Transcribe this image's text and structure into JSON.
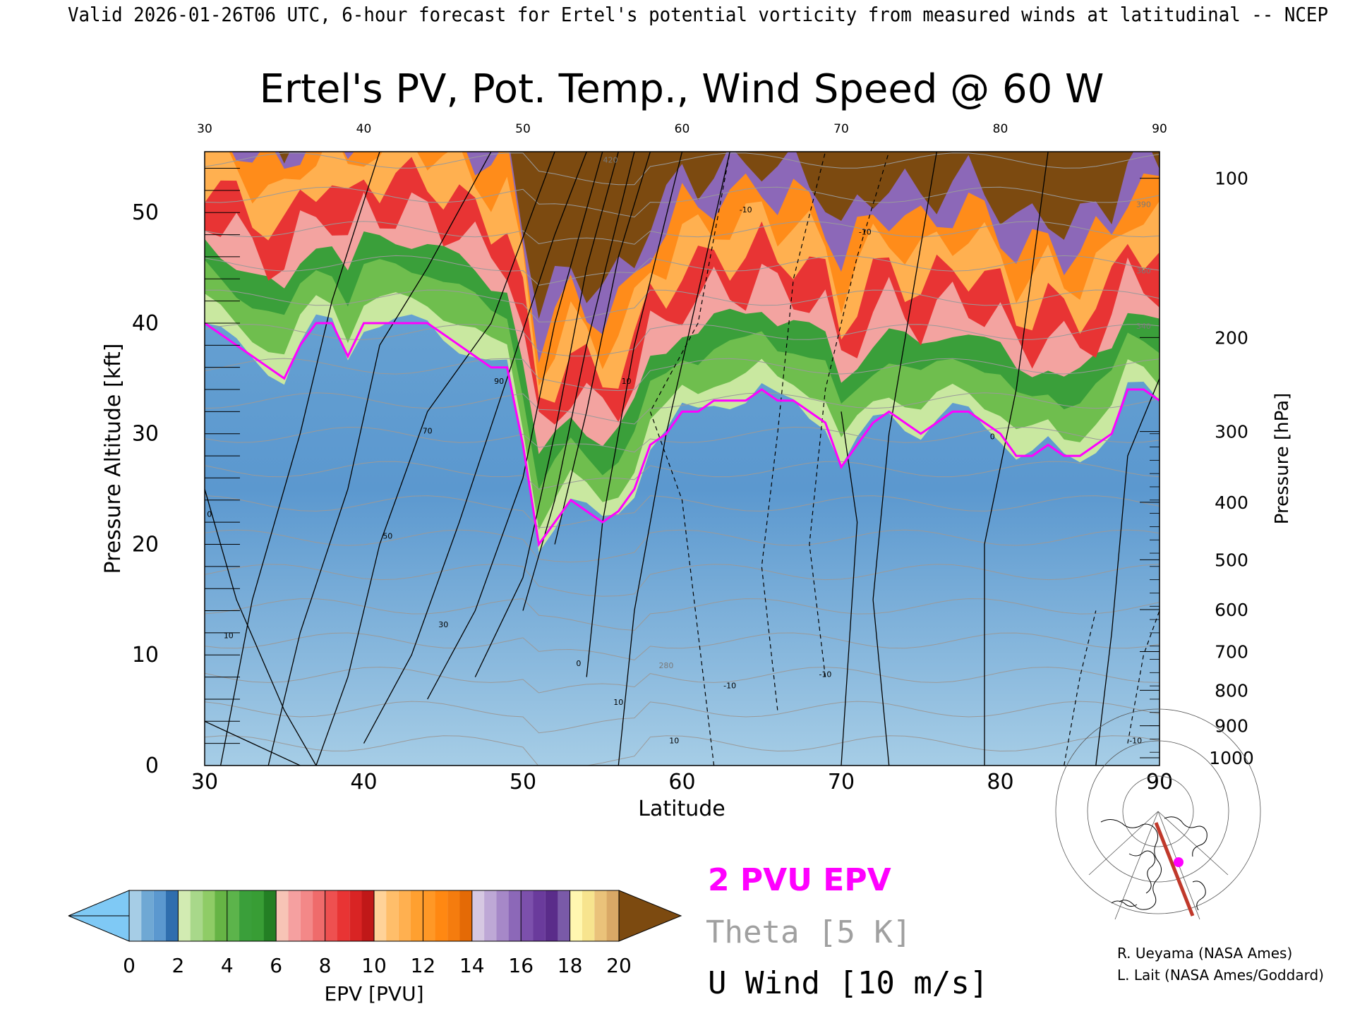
{
  "header": "Valid 2026-01-26T06 UTC, 6-hour forecast for Ertel's potential vorticity from measured winds at latitudinal -- NCEP",
  "credits": [
    "R. Ueyama (NASA Ames)",
    "L. Lait (NASA Ames/Goddard)"
  ],
  "legend": {
    "pv2": "2 PVU EPV",
    "theta": "Theta [5 K]",
    "uwind": "U Wind [10 m/s]",
    "colors": {
      "pv2": "#ff00ff",
      "theta": "#a0a0a0",
      "uwind": "#000000"
    }
  },
  "chart_data": {
    "type": "heatmap",
    "title": "Ertel's PV, Pot. Temp., Wind Speed @ 60 W",
    "xlabel": "Latitude",
    "ylabel": "Pressure Altitude [kft]",
    "ylabel_right": "Pressure [hPa]",
    "xlim": [
      30,
      90
    ],
    "ylim": [
      0,
      55.5
    ],
    "xticks": [
      30,
      40,
      50,
      60,
      70,
      80,
      90
    ],
    "yticks": [
      0,
      10,
      20,
      30,
      40,
      50
    ],
    "pressure_ticks": [
      {
        "label": "100",
        "kft": 53.1
      },
      {
        "label": "200",
        "kft": 38.7
      },
      {
        "label": "300",
        "kft": 30.2
      },
      {
        "label": "400",
        "kft": 23.8
      },
      {
        "label": "500",
        "kft": 18.6
      },
      {
        "label": "600",
        "kft": 14.1
      },
      {
        "label": "700",
        "kft": 10.3
      },
      {
        "label": "800",
        "kft": 6.8
      },
      {
        "label": "900",
        "kft": 3.6
      },
      {
        "label": "1000",
        "kft": 0.7
      }
    ],
    "tropopause_2pvu": {
      "lat": [
        30,
        31,
        32,
        33,
        34,
        35,
        36,
        37,
        38,
        39,
        40,
        41,
        42,
        43,
        44,
        45,
        46,
        47,
        48,
        49,
        50,
        51,
        52,
        53,
        54,
        55,
        56,
        57,
        58,
        59,
        60,
        61,
        62,
        63,
        64,
        65,
        66,
        67,
        68,
        69,
        70,
        71,
        72,
        73,
        74,
        75,
        76,
        77,
        78,
        79,
        80,
        81,
        82,
        83,
        84,
        85,
        86,
        87,
        88,
        89,
        90
      ],
      "kft": [
        40,
        39,
        38,
        37,
        36,
        35,
        38,
        40,
        40,
        37,
        40,
        40,
        40,
        40,
        40,
        39,
        38,
        37,
        36,
        36,
        29,
        20,
        22,
        24,
        23,
        22,
        23,
        25,
        29,
        30,
        32,
        32,
        33,
        33,
        33,
        34,
        33,
        33,
        32,
        31,
        27,
        29,
        31,
        32,
        31,
        30,
        31,
        32,
        32,
        31,
        30,
        28,
        28,
        29,
        28,
        28,
        29,
        30,
        34,
        34,
        33
      ]
    },
    "u_wind_contour_labels": [
      {
        "value": "90",
        "lat": 48.5,
        "kft": 34.5
      },
      {
        "value": "70",
        "lat": 44.0,
        "kft": 30.0
      },
      {
        "value": "50",
        "lat": 41.5,
        "kft": 20.5
      },
      {
        "value": "30",
        "lat": 45.0,
        "kft": 12.5
      },
      {
        "value": "10",
        "lat": 31.5,
        "kft": 11.5
      },
      {
        "value": "0",
        "lat": 30.3,
        "kft": 22.5
      },
      {
        "value": "10",
        "lat": 56.0,
        "kft": 5.5
      },
      {
        "value": "10",
        "lat": 59.5,
        "kft": 2.0
      },
      {
        "value": "-10",
        "lat": 63.0,
        "kft": 7.0
      },
      {
        "value": "-10",
        "lat": 69.0,
        "kft": 8.0
      },
      {
        "value": "-10",
        "lat": 64.0,
        "kft": 50.0
      },
      {
        "value": "10",
        "lat": 56.5,
        "kft": 34.5
      },
      {
        "value": "-10",
        "lat": 71.5,
        "kft": 48.0
      },
      {
        "value": "0",
        "lat": 79.5,
        "kft": 29.5
      },
      {
        "value": "0",
        "lat": 53.5,
        "kft": 9.0
      },
      {
        "value": "-10",
        "lat": 88.5,
        "kft": 2.0
      }
    ],
    "theta_contour_labels": [
      {
        "value": "280",
        "lat": 59.0,
        "kft": 8.8
      },
      {
        "value": "340",
        "lat": 89.0,
        "kft": 39.5
      },
      {
        "value": "360",
        "lat": 89.0,
        "kft": 44.5
      },
      {
        "value": "390",
        "lat": 89.0,
        "kft": 50.5
      },
      {
        "value": "420",
        "lat": 55.5,
        "kft": 54.5
      }
    ],
    "colorbar": {
      "label": "EPV [PVU]",
      "ticks": [
        0,
        2,
        4,
        6,
        8,
        10,
        12,
        14,
        16,
        18,
        20
      ],
      "below_color": "#7fc9f5",
      "above_color": "#7c4a10",
      "bins": [
        {
          "from": 0,
          "to": 1,
          "colors": [
            "#a6cde6",
            "#6fa8d4"
          ]
        },
        {
          "from": 1,
          "to": 2,
          "colors": [
            "#5b98cf",
            "#2f6eae"
          ]
        },
        {
          "from": 2,
          "to": 3,
          "colors": [
            "#d2ebb2",
            "#a8d88a"
          ]
        },
        {
          "from": 3,
          "to": 4,
          "colors": [
            "#8fcc66",
            "#66b445"
          ]
        },
        {
          "from": 4,
          "to": 5,
          "colors": [
            "#5cb44b",
            "#3a9f3a"
          ]
        },
        {
          "from": 5,
          "to": 6,
          "colors": [
            "#389d35",
            "#237f24"
          ]
        },
        {
          "from": 6,
          "to": 7,
          "colors": [
            "#f7c4b6",
            "#f5a0a0"
          ]
        },
        {
          "from": 7,
          "to": 8,
          "colors": [
            "#f38888",
            "#ef6b6b"
          ]
        },
        {
          "from": 8,
          "to": 9,
          "colors": [
            "#ee5050",
            "#e83434"
          ]
        },
        {
          "from": 9,
          "to": 10,
          "colors": [
            "#d92424",
            "#c01818"
          ]
        },
        {
          "from": 10,
          "to": 11,
          "colors": [
            "#ffd298",
            "#ffbe6a"
          ]
        },
        {
          "from": 11,
          "to": 12,
          "colors": [
            "#ffb050",
            "#ffa030"
          ]
        },
        {
          "from": 12,
          "to": 13,
          "colors": [
            "#ff9826",
            "#ff8812"
          ]
        },
        {
          "from": 13,
          "to": 14,
          "colors": [
            "#f57c0e",
            "#e46a06"
          ]
        },
        {
          "from": 14,
          "to": 15,
          "colors": [
            "#d6c8e2",
            "#bea8d6"
          ]
        },
        {
          "from": 15,
          "to": 16,
          "colors": [
            "#a688c8",
            "#8c68b8"
          ]
        },
        {
          "from": 16,
          "to": 17,
          "colors": [
            "#7c50ac",
            "#6a3b9c"
          ]
        },
        {
          "from": 17,
          "to": 18,
          "colors": [
            "#5a2c8a",
            "#7a5aa8"
          ]
        },
        {
          "from": 18,
          "to": 19,
          "colors": [
            "#fff7b0",
            "#f7e48e"
          ]
        },
        {
          "from": 19,
          "to": 20,
          "colors": [
            "#eac27a",
            "#d9a866"
          ]
        }
      ]
    }
  }
}
